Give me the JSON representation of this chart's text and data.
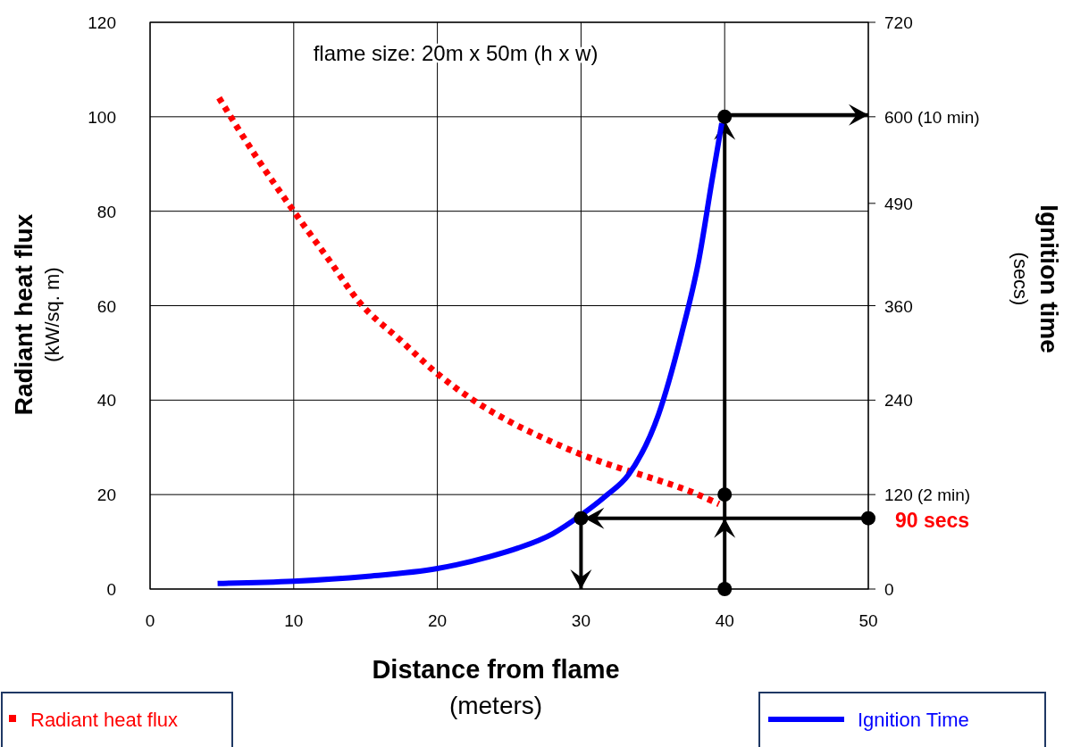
{
  "chart_data": {
    "type": "line",
    "xlabel": "Distance from flame\n(meters)",
    "ylabel": "Radiant heat flux\n(kW/sq. m)",
    "y2label": "Ignition time\n(secs)",
    "xlim": [
      0,
      50
    ],
    "xticks": [
      0,
      10,
      20,
      30,
      40,
      50
    ],
    "ylim": [
      0,
      120
    ],
    "yticks": [
      0,
      20,
      40,
      60,
      80,
      100,
      120
    ],
    "y2lim": [
      0,
      720
    ],
    "y2ticks": [
      0,
      {
        "value": 120,
        "label": "120 (2 min)"
      },
      240,
      360,
      490,
      {
        "value": 600,
        "label": "600 (10 min)"
      },
      720
    ],
    "grid": true,
    "legend": "bottom",
    "series": [
      {
        "name": "Radiant heat flux",
        "color": "#ff0000",
        "line_style": "dotted",
        "x": [
          4.8,
          7.5,
          10,
          12.5,
          14.5,
          17.5,
          20,
          22.5,
          25,
          27.5,
          30,
          32.5,
          35,
          37.5,
          39.6
        ],
        "values": [
          104,
          91,
          80,
          69.5,
          61,
          52.5,
          45.6,
          40,
          35.5,
          31.8,
          28.5,
          25.8,
          23.4,
          20.8,
          18
        ]
      },
      {
        "name": "Ignition Time",
        "color": "#0000ff",
        "axis": "y2",
        "line_style": "solid",
        "x": [
          4.7,
          10,
          15,
          20,
          23.6,
          25.6,
          28,
          30,
          31.7,
          33.3,
          35.4,
          37,
          38.2,
          39.1,
          39.8
        ],
        "values": [
          7,
          10,
          16,
          26,
          41,
          52,
          70,
          94,
          118,
          145,
          222,
          324,
          418,
          517,
          592
        ]
      },
      {
        "type": "scatter",
        "color": "#000000",
        "axis": "y2",
        "marker": "circle",
        "x": [
          40,
          40,
          40,
          30,
          50
        ],
        "values": [
          0,
          120,
          600,
          90,
          90
        ]
      }
    ],
    "ref_lines": [
      {
        "axis": "x",
        "value": 40
      },
      {
        "axis": "y2",
        "value": 600
      },
      {
        "axis": "y2",
        "value": 90
      },
      {
        "axis": "x",
        "value": 30
      }
    ],
    "annotations": [
      "flame size: 20m x 50m (h x w)",
      {
        "text": "90 secs",
        "x": 50,
        "y": 15
      }
    ]
  }
}
